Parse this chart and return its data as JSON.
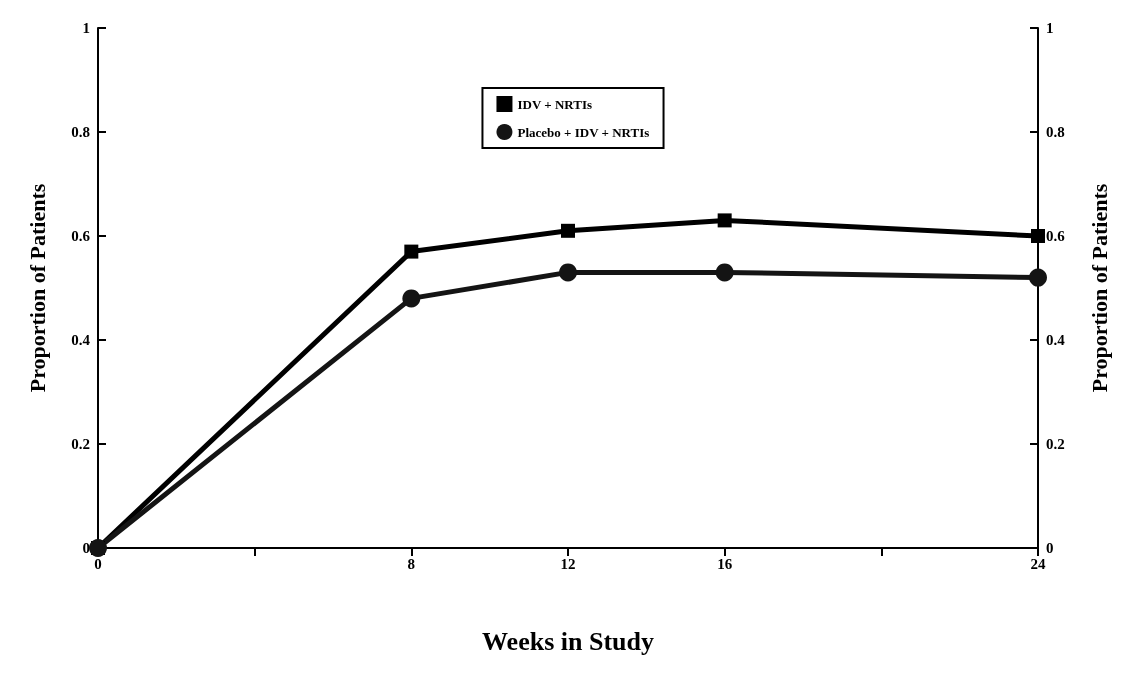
{
  "chart_data": {
    "type": "line",
    "xlabel": "Weeks in Study",
    "ylabel": "Proportion of Patients",
    "y2label": "Proportion of Patients",
    "x": [
      0,
      8,
      12,
      16,
      24
    ],
    "series": [
      {
        "name": "IDV + NRTIs",
        "color": "#000000",
        "marker": "square",
        "values": [
          0,
          0.57,
          0.61,
          0.63,
          0.6
        ]
      },
      {
        "name": "Placebo + IDV + NRTIs",
        "color": "#141414",
        "marker": "circle",
        "values": [
          0,
          0.48,
          0.53,
          0.53,
          0.52
        ]
      }
    ],
    "xlim": [
      0,
      24
    ],
    "xticks": [
      0,
      {
        "value": 4,
        "label": null
      },
      8,
      12,
      16,
      {
        "value": 20,
        "label": null
      },
      24
    ],
    "ylim": [
      0,
      1
    ],
    "yticks": [
      0,
      0.2,
      0.4,
      0.6,
      0.8,
      1
    ],
    "y2lim": [
      0,
      1
    ],
    "y2ticks": [
      0,
      0.2,
      0.4,
      0.6,
      0.8,
      1
    ],
    "grid": false,
    "legend": "top",
    "line_style": "solid"
  }
}
